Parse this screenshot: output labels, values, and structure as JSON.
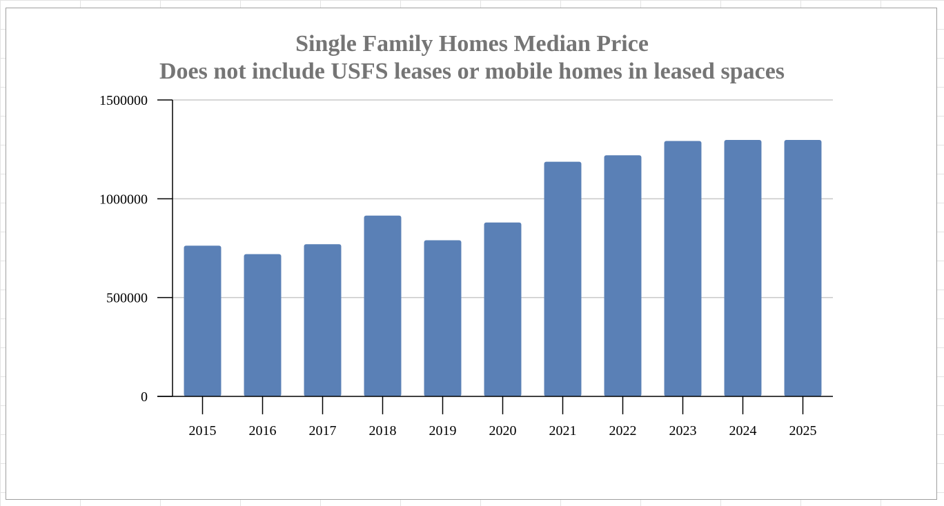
{
  "chart_data": {
    "type": "bar",
    "title": "Single Family Homes Median Price",
    "subtitle": "Does not include USFS leases or mobile homes in leased spaces",
    "xlabel": "",
    "ylabel": "",
    "categories": [
      "2015",
      "2016",
      "2017",
      "2018",
      "2019",
      "2020",
      "2021",
      "2022",
      "2023",
      "2024",
      "2025"
    ],
    "values": [
      762500,
      720000,
      770000,
      915000,
      790000,
      880000,
      1187500,
      1220000,
      1292500,
      1297500,
      1297500
    ],
    "ylim": [
      0,
      1500000
    ],
    "yticks": [
      "0",
      "500000",
      "1000000",
      "1500000"
    ],
    "grid": true,
    "legend": "none",
    "colors": {
      "bar": "#5a80b6",
      "title": "#757575",
      "grid": "#c8c8c8",
      "axis": "#000000"
    }
  }
}
